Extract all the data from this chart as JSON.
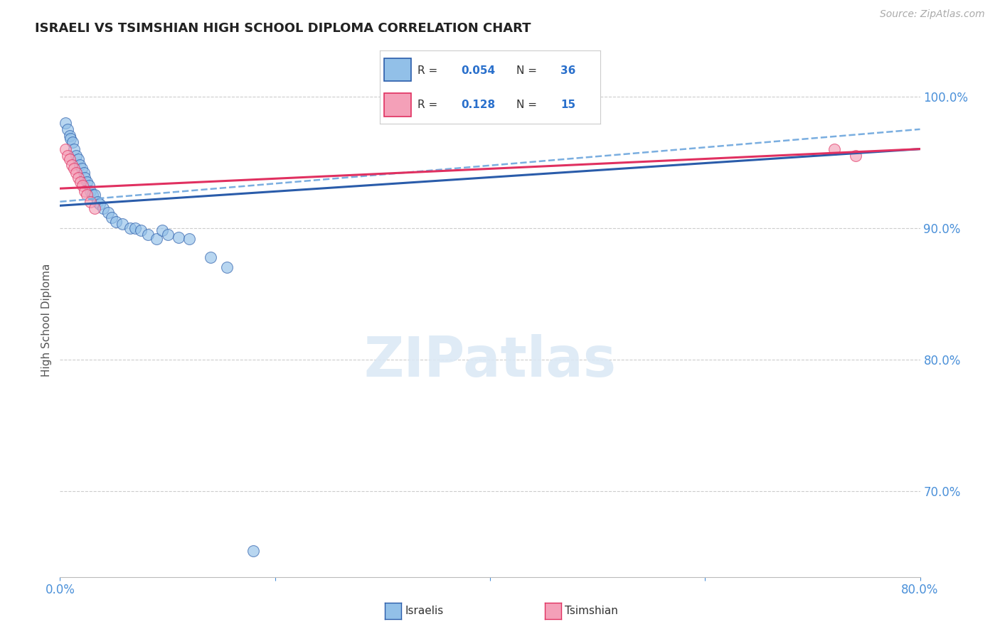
{
  "title": "ISRAELI VS TSIMSHIAN HIGH SCHOOL DIPLOMA CORRELATION CHART",
  "source": "Source: ZipAtlas.com",
  "ylabel": "High School Diploma",
  "xlim": [
    0.0,
    0.8
  ],
  "ylim": [
    0.635,
    1.025
  ],
  "yticks": [
    0.7,
    0.8,
    0.9,
    1.0
  ],
  "ytick_labels": [
    "70.0%",
    "80.0%",
    "90.0%",
    "100.0%"
  ],
  "xticks": [
    0.0,
    0.2,
    0.4,
    0.6,
    0.8
  ],
  "xtick_labels": [
    "0.0%",
    "",
    "",
    "",
    "80.0%"
  ],
  "blue_color": "#92c0e8",
  "pink_color": "#f4a0b8",
  "blue_line_color": "#2a5caa",
  "pink_line_color": "#e03060",
  "dashed_color": "#7aaee0",
  "israelis_x": [
    0.005,
    0.007,
    0.009,
    0.01,
    0.012,
    0.013,
    0.015,
    0.017,
    0.018,
    0.02,
    0.022,
    0.023,
    0.025,
    0.027,
    0.028,
    0.03,
    0.032,
    0.035,
    0.037,
    0.04,
    0.045,
    0.048,
    0.052,
    0.058,
    0.065,
    0.07,
    0.075,
    0.082,
    0.09,
    0.095,
    0.1,
    0.11,
    0.12,
    0.14,
    0.155,
    0.18
  ],
  "israelis_y": [
    0.98,
    0.975,
    0.97,
    0.968,
    0.965,
    0.96,
    0.955,
    0.952,
    0.948,
    0.945,
    0.942,
    0.938,
    0.935,
    0.932,
    0.928,
    0.925,
    0.925,
    0.92,
    0.918,
    0.915,
    0.912,
    0.908,
    0.905,
    0.903,
    0.9,
    0.9,
    0.898,
    0.895,
    0.892,
    0.898,
    0.895,
    0.893,
    0.892,
    0.878,
    0.87,
    0.655
  ],
  "tsimshian_x": [
    0.005,
    0.007,
    0.009,
    0.011,
    0.013,
    0.015,
    0.017,
    0.019,
    0.021,
    0.023,
    0.025,
    0.028,
    0.032,
    0.72,
    0.74
  ],
  "tsimshian_y": [
    0.96,
    0.955,
    0.952,
    0.948,
    0.945,
    0.942,
    0.938,
    0.935,
    0.932,
    0.928,
    0.925,
    0.92,
    0.915,
    0.96,
    0.955
  ],
  "background_color": "#ffffff",
  "grid_color": "#cccccc",
  "legend_items": [
    {
      "label_r": "R = ",
      "val_r": "0.054",
      "label_n": "N = ",
      "val_n": "36",
      "color": "#92c0e8",
      "edge": "#2a5caa"
    },
    {
      "label_r": "R =  ",
      "val_r": "0.128",
      "label_n": "N = ",
      "val_n": "15",
      "color": "#f4a0b8",
      "edge": "#e03060"
    }
  ]
}
